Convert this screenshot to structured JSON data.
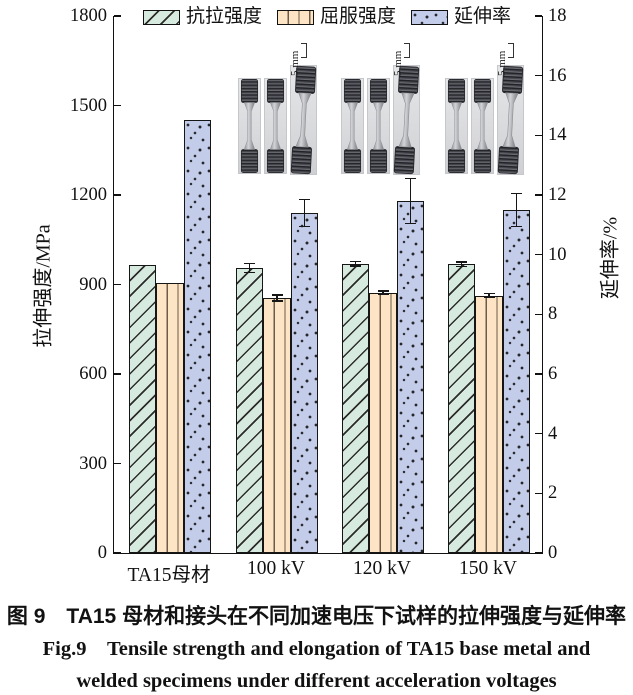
{
  "chart_data": {
    "type": "bar",
    "categories": [
      "TA15母材",
      "100 kV",
      "120 kV",
      "150 kV"
    ],
    "series": [
      {
        "name": "抗拉强度",
        "axis": "left",
        "pattern": "hatch",
        "values": [
          965,
          955,
          970,
          968
        ],
        "errors": [
          0,
          15,
          8,
          8
        ],
        "fill": "#d7eadf"
      },
      {
        "name": "屈服强度",
        "axis": "left",
        "pattern": "vlines",
        "values": [
          905,
          855,
          872,
          863
        ],
        "errors": [
          0,
          10,
          6,
          6
        ],
        "fill": "#fce4c5"
      },
      {
        "name": "延伸率",
        "axis": "right",
        "pattern": "speckle",
        "values": [
          14.5,
          11.4,
          11.8,
          11.5
        ],
        "errors": [
          0,
          0.45,
          0.75,
          0.55
        ],
        "fill": "#c3cde9"
      }
    ],
    "ylabel_left": "拉伸强度/MPa",
    "ylabel_right": "延伸率/%",
    "ylim_left": [
      0,
      1800
    ],
    "ytick_step_left": 300,
    "ylim_right": [
      0,
      18
    ],
    "ytick_step_right": 2,
    "legend_position": "top",
    "grid": false,
    "axis_color": "#111111"
  },
  "specimens": {
    "scale_label": "5 mm",
    "groups": [
      {
        "over_category": "100 kV",
        "photo_count": 3
      },
      {
        "over_category": "120 kV",
        "photo_count": 3
      },
      {
        "over_category": "150 kV",
        "photo_count": 3
      }
    ]
  },
  "caption": {
    "zh": "图 9 TA15 母材和接头在不同加速电压下试样的拉伸强度与延伸率",
    "en_line1": "Fig.9 Tensile strength and elongation of TA15 base metal and",
    "en_line2": "welded specimens under different acceleration voltages"
  }
}
